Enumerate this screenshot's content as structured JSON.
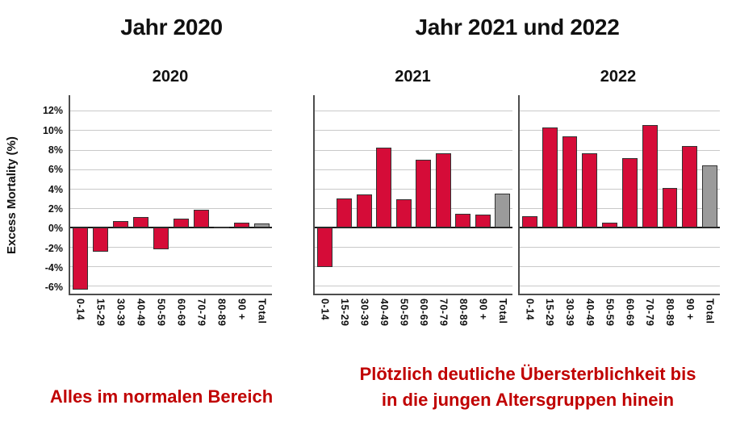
{
  "headers": {
    "left": "Jahr 2020",
    "right": "Jahr 2021 und 2022"
  },
  "y_axis": {
    "title": "Excess Mortality (%)",
    "ylim": [
      -6.8,
      13.6
    ],
    "ticks": [
      {
        "value": 12,
        "label": "12%"
      },
      {
        "value": 10,
        "label": "10%"
      },
      {
        "value": 8,
        "label": "8%"
      },
      {
        "value": 6,
        "label": "6%"
      },
      {
        "value": 4,
        "label": "4%"
      },
      {
        "value": 2,
        "label": "2%"
      },
      {
        "value": 0,
        "label": "0%"
      },
      {
        "value": -2,
        "label": "-2%"
      },
      {
        "value": -4,
        "label": "-4%"
      },
      {
        "value": -6,
        "label": "-6%"
      }
    ]
  },
  "captions": {
    "left": "Alles im normalen Bereich",
    "right_line1": "Plötzlich deutliche Übersterblichkeit bis",
    "right_line2": "in die jungen Altersgruppen hinein"
  },
  "colors": {
    "bar_red": "#d50c38",
    "bar_gray": "#9b9b9b",
    "bar_border": "#333333",
    "grid": "#c9c9c9",
    "axis": "#4d4d4d",
    "zero_line": "#1a1a1a",
    "caption_red": "#c00000",
    "title_black": "#111111"
  },
  "chart_data": [
    {
      "type": "bar",
      "title": "2020",
      "categories": [
        "0-14",
        "15-29",
        "30-39",
        "40-49",
        "50-59",
        "60-69",
        "70-79",
        "80-89",
        "90 +",
        "Total"
      ],
      "values": [
        -6.4,
        -2.5,
        0.7,
        1.1,
        -2.2,
        0.9,
        1.8,
        0.05,
        0.5,
        0.4
      ],
      "xlabel": "",
      "ylabel": "Excess Mortality (%)",
      "ylim": [
        -6.8,
        13.6
      ],
      "gridlines": [
        12,
        10,
        8,
        6,
        4,
        2,
        0,
        -2,
        -4,
        -6
      ],
      "grid": true,
      "legend": "none",
      "total_bar_index": 9
    },
    {
      "type": "bar",
      "title": "2021",
      "categories": [
        "0-14",
        "15-29",
        "30-39",
        "40-49",
        "50-59",
        "60-69",
        "70-79",
        "80-89",
        "90 +",
        "Total"
      ],
      "values": [
        -4.1,
        3.0,
        3.4,
        8.2,
        2.9,
        7.0,
        7.6,
        1.4,
        1.3,
        3.5
      ],
      "xlabel": "",
      "ylabel": "Excess Mortality (%)",
      "ylim": [
        -6.8,
        13.6
      ],
      "gridlines": [
        12,
        10,
        8,
        6,
        4,
        2,
        0,
        -2,
        -4,
        -6
      ],
      "grid": true,
      "legend": "none",
      "total_bar_index": 9
    },
    {
      "type": "bar",
      "title": "2022",
      "categories": [
        "0-14",
        "15-29",
        "30-39",
        "40-49",
        "50-59",
        "60-69",
        "70-79",
        "80-89",
        "90 +",
        "Total"
      ],
      "values": [
        1.2,
        10.3,
        9.4,
        7.6,
        0.5,
        7.1,
        10.5,
        4.1,
        8.4,
        6.4
      ],
      "xlabel": "",
      "ylabel": "Excess Mortality (%)",
      "ylim": [
        -6.8,
        13.6
      ],
      "gridlines": [
        12,
        10,
        8,
        6,
        4,
        2,
        0,
        -2,
        -4,
        -6
      ],
      "grid": true,
      "legend": "none",
      "total_bar_index": 9
    }
  ]
}
